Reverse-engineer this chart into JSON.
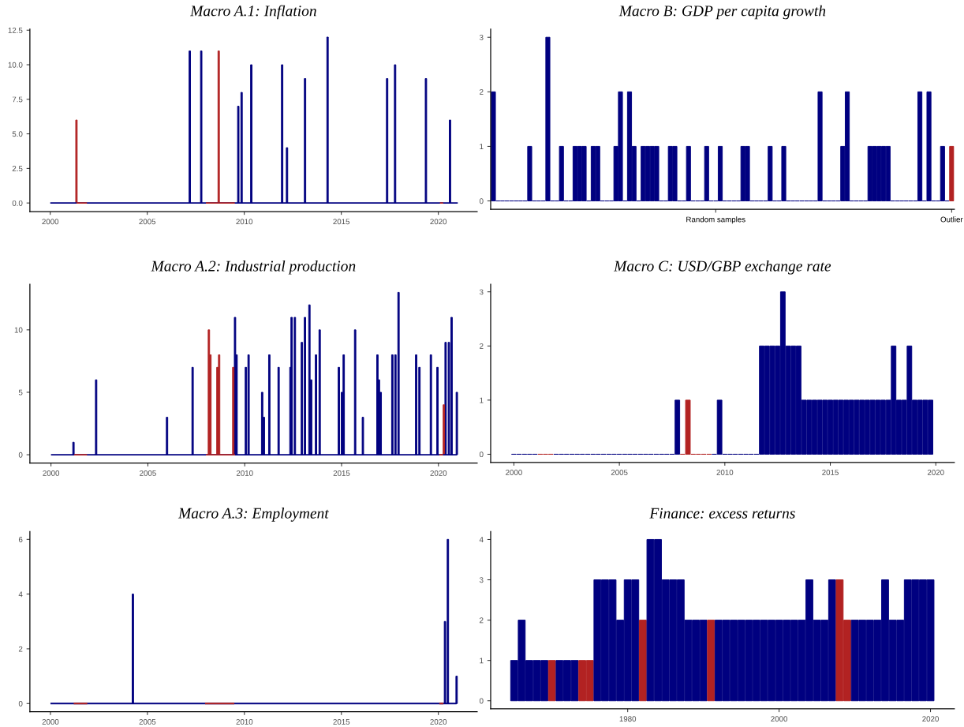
{
  "chart_data": [
    {
      "type": "bar",
      "title": "Macro A.1: Inflation",
      "series": [
        {
          "type": "line",
          "x": [
            2000,
            2021
          ],
          "values": [
            0,
            0
          ],
          "color": "#000080"
        },
        {
          "type": "line",
          "x": [
            2001.35,
            2001.89
          ],
          "values": [
            0,
            0
          ],
          "color": "#b22222"
        },
        {
          "type": "line",
          "x": [
            2008.02,
            2009.51
          ],
          "values": [
            0,
            0
          ],
          "color": "#b22222"
        },
        {
          "type": "line",
          "x": [
            2020.08,
            2020.25
          ],
          "values": [
            0,
            0
          ],
          "color": "#b22222"
        },
        {
          "x": [
            2007.19,
            2007.78,
            2009.69,
            2009.86,
            2010.36,
            2011.95,
            2012.2,
            2013.13,
            2014.29,
            2017.36,
            2017.77,
            2019.36,
            2020.6
          ],
          "values": [
            11,
            11,
            7,
            8,
            10,
            10,
            4,
            9,
            12,
            9,
            10,
            9,
            6
          ],
          "color": "#000080"
        },
        {
          "x": [
            2001.35,
            2008.68
          ],
          "values": [
            6,
            11
          ],
          "color": "#b22222"
        }
      ],
      "xlim": [
        1998.95,
        2022.0
      ],
      "xticks": [
        2000,
        2005,
        2010,
        2015,
        2020
      ],
      "ylim": [
        -0.62,
        12.58
      ],
      "yticks": [
        {
          "value": 0,
          "label": "0.0"
        },
        2.5,
        {
          "value": 5,
          "label": "5.0"
        },
        7.5,
        {
          "value": 10,
          "label": "10.0"
        },
        12.5
      ]
    },
    {
      "type": "bar",
      "title": "Macro B: GDP per capita growth",
      "categories": [
        null,
        null,
        null,
        null,
        null,
        null,
        null,
        null,
        null,
        null,
        null,
        null,
        null,
        null,
        null,
        null,
        null,
        null,
        null,
        null,
        null,
        null,
        null,
        null,
        null,
        null,
        null,
        null,
        null,
        null,
        null,
        null,
        null,
        null,
        null,
        null,
        null,
        null,
        null,
        null,
        null,
        null,
        null,
        null,
        null,
        null,
        null,
        null,
        null,
        "Random samples",
        null,
        null,
        null,
        null,
        null,
        null,
        null,
        null,
        null,
        null,
        null,
        null,
        null,
        null,
        null,
        null,
        null,
        null,
        null,
        null,
        null,
        null,
        null,
        null,
        null,
        null,
        null,
        null,
        null,
        null,
        null,
        null,
        null,
        null,
        null,
        null,
        null,
        null,
        null,
        null,
        null,
        null,
        null,
        null,
        null,
        null,
        null,
        null,
        null,
        null,
        null,
        "Outlier"
      ],
      "series": [
        {
          "values": [
            2,
            0,
            0,
            0,
            0,
            0,
            0,
            0,
            1,
            0,
            0,
            0,
            3,
            0,
            0,
            1,
            0,
            0,
            1,
            1,
            1,
            0,
            1,
            1,
            0,
            0,
            0,
            1,
            2,
            0,
            2,
            1,
            0,
            1,
            1,
            1,
            1,
            0,
            0,
            1,
            1,
            0,
            0,
            1,
            0,
            0,
            0,
            1,
            0,
            0,
            1,
            0,
            0,
            0,
            0,
            1,
            1,
            0,
            0,
            0,
            0,
            1,
            0,
            0,
            1,
            0,
            0,
            0,
            0,
            0,
            0,
            0,
            2,
            0,
            0,
            0,
            0,
            1,
            2,
            0,
            0,
            0,
            0,
            1,
            1,
            1,
            1,
            1,
            0,
            0,
            0,
            0,
            0,
            0,
            2,
            0,
            2,
            0,
            0,
            1,
            0,
            1
          ],
          "colors": [
            "#000080",
            "#000080",
            "#000080",
            "#000080",
            "#000080",
            "#000080",
            "#000080",
            "#000080",
            "#000080",
            "#000080",
            "#000080",
            "#000080",
            "#000080",
            "#000080",
            "#000080",
            "#000080",
            "#000080",
            "#000080",
            "#000080",
            "#000080",
            "#000080",
            "#000080",
            "#000080",
            "#000080",
            "#000080",
            "#000080",
            "#000080",
            "#000080",
            "#000080",
            "#000080",
            "#000080",
            "#000080",
            "#000080",
            "#000080",
            "#000080",
            "#000080",
            "#000080",
            "#000080",
            "#000080",
            "#000080",
            "#000080",
            "#000080",
            "#000080",
            "#000080",
            "#000080",
            "#000080",
            "#000080",
            "#000080",
            "#000080",
            "#000080",
            "#000080",
            "#000080",
            "#000080",
            "#000080",
            "#000080",
            "#000080",
            "#000080",
            "#000080",
            "#000080",
            "#000080",
            "#000080",
            "#000080",
            "#000080",
            "#000080",
            "#000080",
            "#000080",
            "#000080",
            "#000080",
            "#000080",
            "#000080",
            "#000080",
            "#000080",
            "#000080",
            "#000080",
            "#000080",
            "#000080",
            "#000080",
            "#000080",
            "#000080",
            "#000080",
            "#000080",
            "#000080",
            "#000080",
            "#000080",
            "#000080",
            "#000080",
            "#000080",
            "#000080",
            "#000080",
            "#000080",
            "#000080",
            "#000080",
            "#000080",
            "#000080",
            "#000080",
            "#000080",
            "#000080",
            "#000080",
            "#000080",
            "#000080",
            "#000080",
            "#b22222"
          ]
        }
      ],
      "ylim": [
        -0.155,
        3.15
      ],
      "yticks": [
        0,
        1,
        2,
        3
      ]
    },
    {
      "type": "bar",
      "title": "Macro A.2: Industrial production",
      "series": [
        {
          "type": "line",
          "x": [
            2000,
            2020.95
          ],
          "values": [
            0,
            0
          ],
          "color": "#000080"
        },
        {
          "type": "line",
          "x": [
            2001.2,
            2001.86
          ],
          "values": [
            0,
            0
          ],
          "color": "#b22222"
        },
        {
          "type": "line",
          "x": [
            2008.0,
            2009.5
          ],
          "values": [
            0,
            0
          ],
          "color": "#b22222"
        },
        {
          "type": "line",
          "x": [
            2020.05,
            2020.24
          ],
          "values": [
            0,
            0
          ],
          "color": "#b22222"
        },
        {
          "x": [
            2001.16,
            2002.33,
            2005.99,
            2007.31,
            2009.5,
            2009.58,
            2010.06,
            2010.2,
            2010.9,
            2010.99,
            2011.27,
            2011.75,
            2012.36,
            2012.42,
            2012.59,
            2012.95,
            2013.11,
            2013.34,
            2013.43,
            2013.68,
            2013.87,
            2014.86,
            2015.02,
            2015.11,
            2015.7,
            2016.1,
            2016.85,
            2016.93,
            2017.02,
            2017.62,
            2017.78,
            2017.94,
            2018.85,
            2019.02,
            2019.61,
            2019.95,
            2020.37,
            2020.54,
            2020.68,
            2020.95
          ],
          "values": [
            1,
            6,
            3,
            7,
            11,
            8,
            7,
            8,
            5,
            3,
            8,
            7,
            7,
            11,
            11,
            9,
            11,
            12,
            6,
            8,
            10,
            7,
            5,
            8,
            10,
            3,
            8,
            6,
            5,
            8,
            8,
            13,
            8,
            7,
            8,
            7,
            9,
            9,
            11,
            5
          ],
          "color": "#000080"
        },
        {
          "x": [
            2008.15,
            2008.23,
            2008.59,
            2008.68,
            2009.41,
            2020.28
          ],
          "values": [
            10,
            8,
            7,
            8,
            7,
            4
          ],
          "color": "#b22222"
        }
      ],
      "xlim": [
        1998.91,
        2022.0
      ],
      "xticks": [
        2000,
        2005,
        2010,
        2015,
        2020
      ],
      "ylim": [
        -0.67,
        13.65
      ],
      "yticks": [
        0,
        5,
        10
      ]
    },
    {
      "type": "bar",
      "title": "Macro C: USD/GBP exchange rate",
      "series": [
        {
          "x": [
            2000,
            2000.25,
            2000.5,
            2000.75,
            2001,
            2001.25,
            2001.5,
            2001.75,
            2002,
            2002.25,
            2002.5,
            2002.75,
            2003,
            2003.25,
            2003.5,
            2003.75,
            2004,
            2004.25,
            2004.5,
            2004.75,
            2005,
            2005.25,
            2005.5,
            2005.75,
            2006,
            2006.25,
            2006.5,
            2006.75,
            2007,
            2007.25,
            2007.5,
            2007.75,
            2008,
            2008.25,
            2008.5,
            2008.75,
            2009,
            2009.25,
            2009.5,
            2009.75,
            2010,
            2010.25,
            2010.5,
            2010.75,
            2011,
            2011.25,
            2011.5,
            2011.75,
            2012,
            2012.25,
            2012.5,
            2012.75,
            2013,
            2013.25,
            2013.5,
            2013.75,
            2014,
            2014.25,
            2014.5,
            2014.75,
            2015,
            2015.25,
            2015.5,
            2015.75,
            2016,
            2016.25,
            2016.5,
            2016.75,
            2017,
            2017.25,
            2017.5,
            2017.75,
            2018,
            2018.25,
            2018.5,
            2018.75,
            2019,
            2019.25,
            2019.5,
            2019.75
          ],
          "values": [
            0,
            0,
            0,
            0,
            0,
            0,
            0,
            0,
            0,
            0,
            0,
            0,
            0,
            0,
            0,
            0,
            0,
            0,
            0,
            0,
            0,
            0,
            0,
            0,
            0,
            0,
            0,
            0,
            0,
            0,
            0,
            1,
            0,
            1,
            0,
            0,
            0,
            0,
            0,
            1,
            0,
            0,
            0,
            0,
            0,
            0,
            0,
            2,
            2,
            2,
            2,
            3,
            2,
            2,
            2,
            1,
            1,
            1,
            1,
            1,
            1,
            1,
            1,
            1,
            1,
            1,
            1,
            1,
            1,
            1,
            1,
            1,
            2,
            1,
            1,
            2,
            1,
            1,
            1,
            1
          ],
          "colors": [
            "#000080",
            "#000080",
            "#000080",
            "#000080",
            "#000080",
            "#b22222",
            "#b22222",
            "#b22222",
            "#000080",
            "#000080",
            "#000080",
            "#000080",
            "#000080",
            "#000080",
            "#000080",
            "#000080",
            "#000080",
            "#000080",
            "#000080",
            "#000080",
            "#000080",
            "#000080",
            "#000080",
            "#000080",
            "#000080",
            "#000080",
            "#000080",
            "#000080",
            "#000080",
            "#000080",
            "#000080",
            "#000080",
            "#b22222",
            "#b22222",
            "#b22222",
            "#b22222",
            "#b22222",
            "#b22222",
            "#000080",
            "#000080",
            "#000080",
            "#000080",
            "#000080",
            "#000080",
            "#000080",
            "#000080",
            "#000080",
            "#000080",
            "#000080",
            "#000080",
            "#000080",
            "#000080",
            "#000080",
            "#000080",
            "#000080",
            "#000080",
            "#000080",
            "#000080",
            "#000080",
            "#000080",
            "#000080",
            "#000080",
            "#000080",
            "#000080",
            "#000080",
            "#000080",
            "#000080",
            "#000080",
            "#000080",
            "#000080",
            "#000080",
            "#000080",
            "#000080",
            "#000080",
            "#000080",
            "#000080",
            "#000080",
            "#000080",
            "#000080",
            "#000080"
          ]
        }
      ],
      "xlim": [
        1998.9,
        2020.88
      ],
      "xticks": [
        2000,
        2005,
        2010,
        2015,
        2020
      ],
      "ylim": [
        -0.15,
        3.14
      ],
      "yticks": [
        0,
        1,
        2,
        3
      ]
    },
    {
      "type": "bar",
      "title": "Macro A.3: Employment",
      "series": [
        {
          "type": "line",
          "x": [
            2000,
            2020.94
          ],
          "values": [
            0,
            0
          ],
          "color": "#000080"
        },
        {
          "type": "line",
          "x": [
            2001.2,
            2001.9
          ],
          "values": [
            0,
            0
          ],
          "color": "#b22222"
        },
        {
          "type": "line",
          "x": [
            2007.97,
            2009.48
          ],
          "values": [
            0,
            0
          ],
          "color": "#b22222"
        },
        {
          "type": "line",
          "x": [
            2020.05,
            2020.26
          ],
          "values": [
            0,
            0
          ],
          "color": "#b22222"
        },
        {
          "x": [
            2004.25,
            2020.34,
            2020.49,
            2020.94
          ],
          "values": [
            4,
            3,
            6,
            1
          ],
          "color": "#000080"
        }
      ],
      "xlim": [
        1998.94,
        2022.0
      ],
      "xticks": [
        2000,
        2005,
        2010,
        2015,
        2020
      ],
      "ylim": [
        -0.3,
        6.29
      ],
      "yticks": [
        0,
        2,
        4,
        6
      ]
    },
    {
      "type": "bar",
      "title": "Finance: excess returns",
      "series": [
        {
          "x": [
            1965,
            1966,
            1967,
            1968,
            1969,
            1970,
            1971,
            1972,
            1973,
            1974,
            1975,
            1976,
            1977,
            1978,
            1979,
            1980,
            1981,
            1982,
            1983,
            1984,
            1985,
            1986,
            1987,
            1988,
            1989,
            1990,
            1991,
            1992,
            1993,
            1994,
            1995,
            1996,
            1997,
            1998,
            1999,
            2000,
            2001,
            2002,
            2003,
            2004,
            2005,
            2006,
            2007,
            2008,
            2009,
            2010,
            2011,
            2012,
            2013,
            2014,
            2015,
            2016,
            2017,
            2018,
            2019,
            2020
          ],
          "values": [
            1,
            2,
            1,
            1,
            1,
            1,
            1,
            1,
            1,
            1,
            1,
            3,
            3,
            3,
            2,
            3,
            3,
            2,
            4,
            4,
            3,
            3,
            3,
            2,
            2,
            2,
            2,
            2,
            2,
            2,
            2,
            2,
            2,
            2,
            2,
            2,
            2,
            2,
            2,
            3,
            2,
            2,
            3,
            3,
            2,
            2,
            2,
            2,
            2,
            3,
            2,
            2,
            3,
            3,
            3,
            3
          ],
          "colors": [
            "#000080",
            "#000080",
            "#000080",
            "#000080",
            "#000080",
            "#b22222",
            "#000080",
            "#000080",
            "#000080",
            "#b22222",
            "#b22222",
            "#000080",
            "#000080",
            "#000080",
            "#000080",
            "#000080",
            "#000080",
            "#b22222",
            "#000080",
            "#000080",
            "#000080",
            "#000080",
            "#000080",
            "#000080",
            "#000080",
            "#000080",
            "#b22222",
            "#000080",
            "#000080",
            "#000080",
            "#000080",
            "#000080",
            "#000080",
            "#000080",
            "#000080",
            "#000080",
            "#000080",
            "#000080",
            "#000080",
            "#000080",
            "#000080",
            "#000080",
            "#000080",
            "#b22222",
            "#b22222",
            "#000080",
            "#000080",
            "#000080",
            "#000080",
            "#000080",
            "#000080",
            "#000080",
            "#000080",
            "#000080",
            "#000080",
            "#000080"
          ]
        }
      ],
      "xlim": [
        1961.9,
        2023.15
      ],
      "xticks": [
        1980,
        2000,
        2020
      ],
      "ylim": [
        -0.2,
        4.2
      ],
      "yticks": [
        0,
        1,
        2,
        3,
        4
      ]
    }
  ]
}
